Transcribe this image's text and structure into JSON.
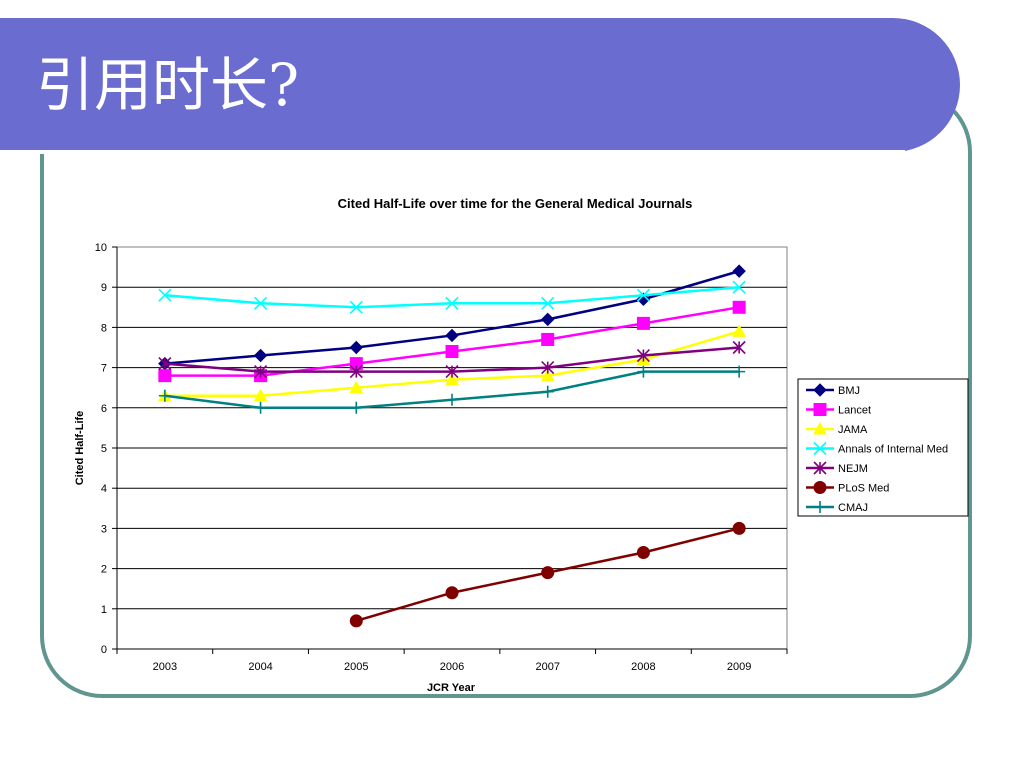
{
  "slide": {
    "title": "引用时长?"
  },
  "colors": {
    "title_bar": "#6a6ccf",
    "frame_border": "#5f9690"
  },
  "chart_data": {
    "type": "line",
    "title": "Cited Half-Life over time for the General Medical Journals",
    "xlabel": "JCR Year",
    "ylabel": "Cited Half-Life",
    "x": [
      "2003",
      "2004",
      "2005",
      "2006",
      "2007",
      "2008",
      "2009"
    ],
    "ylim": [
      0,
      10
    ],
    "yticks": [
      "0",
      "1",
      "2",
      "3",
      "4",
      "5",
      "6",
      "7",
      "8",
      "9",
      "10"
    ],
    "grid": true,
    "legend_position": "right",
    "series": [
      {
        "name": "BMJ",
        "color": "#000080",
        "marker": "diamond",
        "values": [
          7.1,
          7.3,
          7.5,
          7.8,
          8.2,
          8.7,
          9.4
        ]
      },
      {
        "name": "Lancet",
        "color": "#ff00ff",
        "marker": "square",
        "values": [
          6.8,
          6.8,
          7.1,
          7.4,
          7.7,
          8.1,
          8.5
        ]
      },
      {
        "name": "JAMA",
        "color": "#ffff00",
        "marker": "triangle",
        "values": [
          6.3,
          6.3,
          6.5,
          6.7,
          6.8,
          7.2,
          7.9
        ]
      },
      {
        "name": "Annals of Internal Med",
        "color": "#00ffff",
        "marker": "x",
        "values": [
          8.8,
          8.6,
          8.5,
          8.6,
          8.6,
          8.8,
          9.0
        ]
      },
      {
        "name": "NEJM",
        "color": "#800080",
        "marker": "star",
        "values": [
          7.1,
          6.9,
          6.9,
          6.9,
          7.0,
          7.3,
          7.5
        ]
      },
      {
        "name": "PLoS Med",
        "color": "#800000",
        "marker": "circle",
        "values": [
          null,
          null,
          0.7,
          1.4,
          1.9,
          2.4,
          3.0
        ]
      },
      {
        "name": "CMAJ",
        "color": "#008080",
        "marker": "plus",
        "values": [
          6.3,
          6.0,
          6.0,
          6.2,
          6.4,
          6.9,
          6.9
        ]
      }
    ]
  }
}
